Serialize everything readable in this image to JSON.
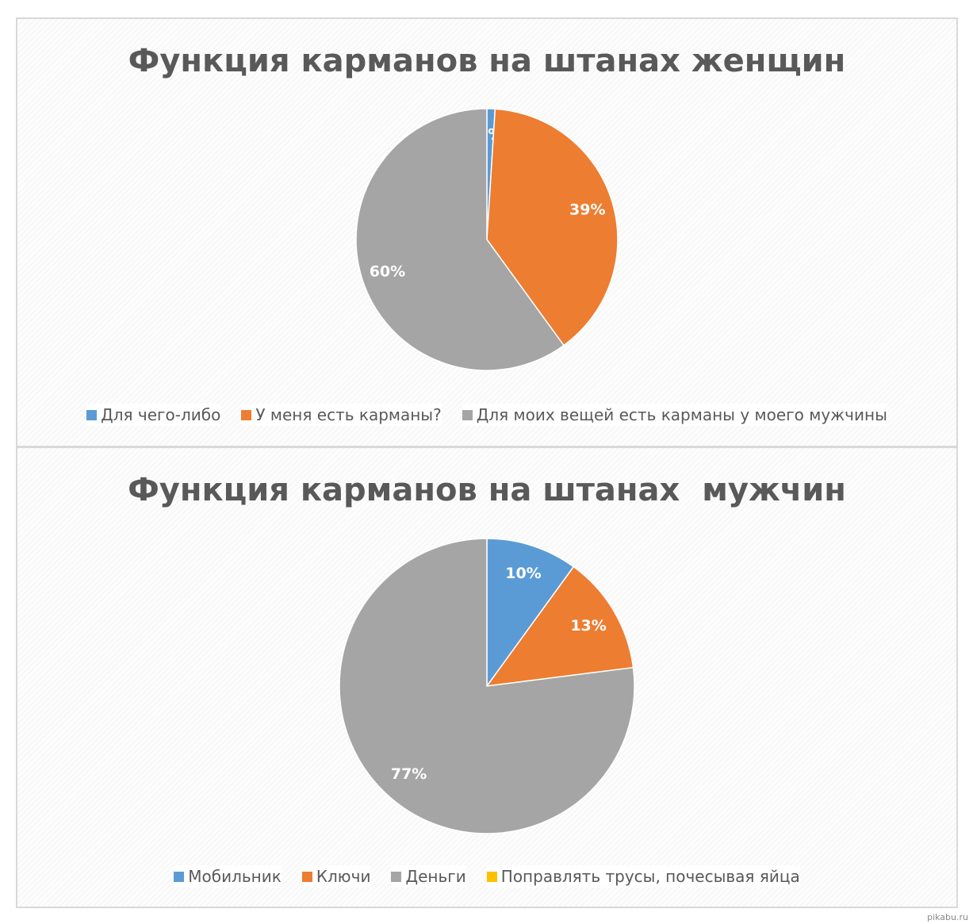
{
  "chart_data": [
    {
      "type": "pie",
      "title": "Функция карманов на штанах женщин",
      "labels": [
        "Для чего-либо",
        "У меня есть карманы?",
        "Для моих вещей есть карманы у моего мужчины"
      ],
      "values": [
        1,
        39,
        60
      ],
      "data_labels": [
        "1%",
        "39%",
        "60%"
      ],
      "colors": [
        "#5b9bd5",
        "#ed7d31",
        "#a5a5a5"
      ],
      "legend": "bottom"
    },
    {
      "type": "pie",
      "title": "Функция карманов на штанах  мужчин",
      "labels": [
        "Мобильник",
        "Ключи",
        "Деньги",
        "Поправлять трусы, почесывая яйца"
      ],
      "values": [
        10,
        13,
        77,
        0
      ],
      "data_labels": [
        "10%",
        "13%",
        "77%",
        ""
      ],
      "colors": [
        "#5b9bd5",
        "#ed7d31",
        "#a5a5a5",
        "#ffc000"
      ],
      "legend": "bottom"
    }
  ],
  "watermark": "pikabu.ru"
}
